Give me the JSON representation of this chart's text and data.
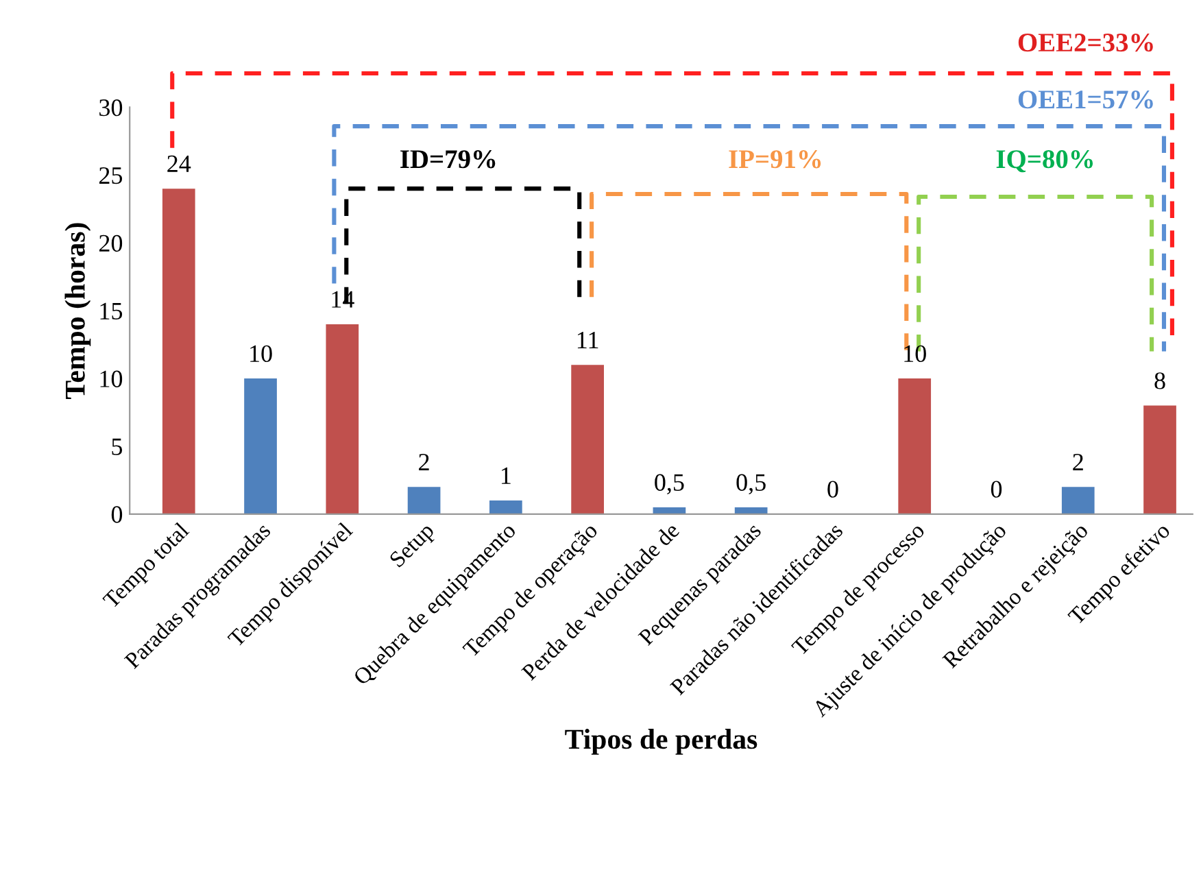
{
  "chart_data": {
    "type": "bar",
    "xlabel": "Tipos de perdas",
    "ylabel": "Tempo (horas)",
    "categories": [
      "Tempo total",
      "Paradas programadas",
      "Tempo disponível",
      "Setup",
      "Quebra de equipamento",
      "Tempo de operação",
      "Perda de velocidade de",
      "Pequenas paradas",
      "Paradas não identificadas",
      "Tempo de processo",
      "Ajuste de início de produção",
      "Retrabalho e rejeição",
      "Tempo efetivo"
    ],
    "values": [
      24,
      10,
      14,
      2,
      1,
      11,
      0.5,
      0.5,
      0,
      10,
      0,
      2,
      8
    ],
    "colors": [
      "#c0504d",
      "#4f81bd",
      "#c0504d",
      "#4f81bd",
      "#4f81bd",
      "#c0504d",
      "#4f81bd",
      "#4f81bd",
      "#4f81bd",
      "#c0504d",
      "#4f81bd",
      "#4f81bd",
      "#c0504d"
    ],
    "value_labels": [
      "24",
      "10",
      "14",
      "2",
      "1",
      "11",
      "0,5",
      "0,5",
      "0",
      "10",
      "0",
      "2",
      "8"
    ],
    "ylim": [
      0,
      30
    ],
    "yticks": [
      0,
      5,
      10,
      15,
      20,
      25,
      30
    ],
    "grid": false,
    "annotations": [
      "OEE2=33%",
      "OEE1=57%",
      "ID=79%",
      "IP=91%",
      "IQ=80%"
    ]
  }
}
